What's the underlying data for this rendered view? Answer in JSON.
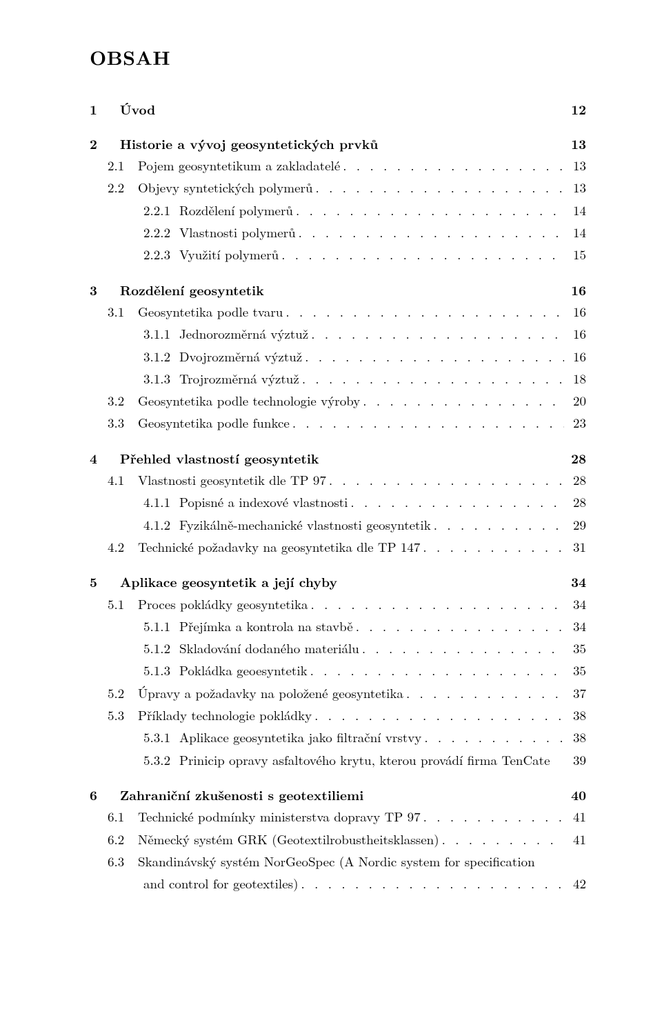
{
  "title": "OBSAH",
  "entries": [
    {
      "level": "chapter",
      "num": "1",
      "text": "Úvod",
      "page": "12",
      "bold": true,
      "leaders": false
    },
    {
      "level": "chapter",
      "num": "2",
      "text": "Historie a vývoj geosyntetických prvků",
      "page": "13",
      "bold": true,
      "leaders": false
    },
    {
      "level": "section",
      "num": "2.1",
      "text": "Pojem geosyntetikum a zakladatelé",
      "page": "13",
      "bold": false,
      "leaders": true
    },
    {
      "level": "section",
      "num": "2.2",
      "text": "Objevy syntetických polymerů",
      "page": "13",
      "bold": false,
      "leaders": true
    },
    {
      "level": "subsection",
      "num": "2.2.1",
      "text": "Rozdělení polymerů",
      "page": "14",
      "bold": false,
      "leaders": true
    },
    {
      "level": "subsection",
      "num": "2.2.2",
      "text": "Vlastnosti polymerů",
      "page": "14",
      "bold": false,
      "leaders": true
    },
    {
      "level": "subsection",
      "num": "2.2.3",
      "text": "Využití polymerů",
      "page": "15",
      "bold": false,
      "leaders": true
    },
    {
      "level": "chapter",
      "num": "3",
      "text": "Rozdělení geosyntetik",
      "page": "16",
      "bold": true,
      "leaders": false
    },
    {
      "level": "section",
      "num": "3.1",
      "text": "Geosyntetika podle tvaru",
      "page": "16",
      "bold": false,
      "leaders": true
    },
    {
      "level": "subsection",
      "num": "3.1.1",
      "text": "Jednorozměrná výztuž",
      "page": "16",
      "bold": false,
      "leaders": true
    },
    {
      "level": "subsection",
      "num": "3.1.2",
      "text": "Dvojrozměrná výztuž",
      "page": "16",
      "bold": false,
      "leaders": true
    },
    {
      "level": "subsection",
      "num": "3.1.3",
      "text": "Trojrozměrná výztuž",
      "page": "18",
      "bold": false,
      "leaders": true
    },
    {
      "level": "section",
      "num": "3.2",
      "text": "Geosyntetika podle technologie výroby",
      "page": "20",
      "bold": false,
      "leaders": true
    },
    {
      "level": "section",
      "num": "3.3",
      "text": "Geosyntetika podle funkce",
      "page": "23",
      "bold": false,
      "leaders": true
    },
    {
      "level": "chapter",
      "num": "4",
      "text": "Přehled vlastností geosyntetik",
      "page": "28",
      "bold": true,
      "leaders": false
    },
    {
      "level": "section",
      "num": "4.1",
      "text": "Vlastnosti geosyntetik dle TP 97",
      "page": "28",
      "bold": false,
      "leaders": true
    },
    {
      "level": "subsection",
      "num": "4.1.1",
      "text": "Popisné a indexové vlastnosti",
      "page": "28",
      "bold": false,
      "leaders": true
    },
    {
      "level": "subsection",
      "num": "4.1.2",
      "text": "Fyzikálně-mechanické vlastnosti geosyntetik",
      "page": "29",
      "bold": false,
      "leaders": true
    },
    {
      "level": "section",
      "num": "4.2",
      "text": "Technické požadavky na geosyntetika dle TP 147",
      "page": "31",
      "bold": false,
      "leaders": true
    },
    {
      "level": "chapter",
      "num": "5",
      "text": "Aplikace geosyntetik a její chyby",
      "page": "34",
      "bold": true,
      "leaders": false
    },
    {
      "level": "section",
      "num": "5.1",
      "text": "Proces pokládky geosyntetika",
      "page": "34",
      "bold": false,
      "leaders": true
    },
    {
      "level": "subsection",
      "num": "5.1.1",
      "text": "Přejímka a kontrola na stavbě",
      "page": "34",
      "bold": false,
      "leaders": true
    },
    {
      "level": "subsection",
      "num": "5.1.2",
      "text": "Skladování dodaného materiálu",
      "page": "35",
      "bold": false,
      "leaders": true
    },
    {
      "level": "subsection",
      "num": "5.1.3",
      "text": "Pokládka geoesyntetik",
      "page": "35",
      "bold": false,
      "leaders": true
    },
    {
      "level": "section",
      "num": "5.2",
      "text": "Úpravy a požadavky na položené geosyntetika",
      "page": "37",
      "bold": false,
      "leaders": true
    },
    {
      "level": "section",
      "num": "5.3",
      "text": "Příklady technologie pokládky",
      "page": "38",
      "bold": false,
      "leaders": true
    },
    {
      "level": "subsection",
      "num": "5.3.1",
      "text": "Aplikace geosyntetika jako filtrační vrstvy",
      "page": "38",
      "bold": false,
      "leaders": true
    },
    {
      "level": "subsection",
      "num": "5.3.2",
      "text": "Prinicip opravy asfaltového krytu, kterou provádí firma TenCate",
      "page": "39",
      "bold": false,
      "leaders": false
    },
    {
      "level": "chapter",
      "num": "6",
      "text": "Zahraniční zkušenosti s geotextiliemi",
      "page": "40",
      "bold": true,
      "leaders": false
    },
    {
      "level": "section",
      "num": "6.1",
      "text": "Technické podmínky ministerstva dopravy TP 97",
      "page": "41",
      "bold": false,
      "leaders": true
    },
    {
      "level": "section",
      "num": "6.2",
      "text": "Německý systém GRK (Geotextilrobustheitsklassen)",
      "page": "41",
      "bold": false,
      "leaders": true
    },
    {
      "level": "section-multiline",
      "num": "6.3",
      "text1": "Skandinávský systém NorGeoSpec (A Nordic system for specification",
      "text2": "and control for geotextiles)",
      "page": "42",
      "bold": false,
      "leaders": true
    }
  ]
}
